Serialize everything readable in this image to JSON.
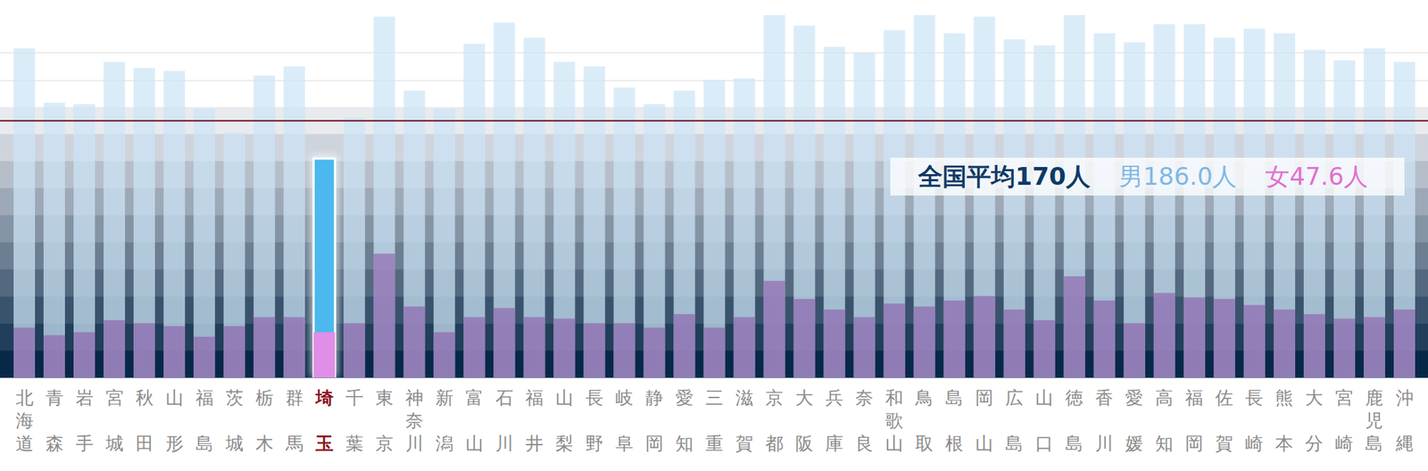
{
  "chart_data": {
    "type": "bar",
    "categories": [
      "北海道",
      "青森",
      "岩手",
      "宮城",
      "秋田",
      "山形",
      "福島",
      "茨城",
      "栃木",
      "群馬",
      "埼玉",
      "千葉",
      "東京",
      "神奈川",
      "新潟",
      "富山",
      "石川",
      "福井",
      "山梨",
      "長野",
      "岐阜",
      "静岡",
      "愛知",
      "三重",
      "滋賀",
      "京都",
      "大阪",
      "兵庫",
      "奈良",
      "和歌山",
      "鳥取",
      "島根",
      "岡山",
      "広島",
      "山口",
      "徳島",
      "香川",
      "愛媛",
      "高知",
      "福岡",
      "佐賀",
      "長崎",
      "熊本",
      "大分",
      "宮崎",
      "鹿児島",
      "沖縄"
    ],
    "series": [
      {
        "name": "男",
        "color": "#cde5f7",
        "colors": [
          "#cde5f7",
          "#cde5f7",
          "#cde5f7",
          "#cde5f7",
          "#cde5f7",
          "#cde5f7",
          "#cde5f7",
          "#cde5f7",
          "#cde5f7",
          "#cde5f7",
          "#4bb8ee",
          "#cde5f7",
          "#cde5f7",
          "#cde5f7",
          "#cde5f7",
          "#cde5f7",
          "#cde5f7",
          "#cde5f7",
          "#cde5f7",
          "#cde5f7",
          "#cde5f7",
          "#cde5f7",
          "#cde5f7",
          "#cde5f7",
          "#cde5f7",
          "#cde5f7",
          "#cde5f7",
          "#cde5f7",
          "#cde5f7",
          "#cde5f7",
          "#cde5f7",
          "#cde5f7",
          "#cde5f7",
          "#cde5f7",
          "#cde5f7",
          "#cde5f7",
          "#cde5f7",
          "#cde5f7",
          "#cde5f7",
          "#cde5f7",
          "#cde5f7",
          "#cde5f7",
          "#cde5f7",
          "#cde5f7",
          "#cde5f7",
          "#cde5f7",
          "#cde5f7"
        ],
        "values": [
          218,
          182,
          181,
          209,
          205,
          203,
          178,
          162,
          200,
          206,
          145,
          172,
          239,
          190,
          178,
          221,
          235,
          225,
          209,
          206,
          192,
          181,
          190,
          197,
          198,
          240,
          233,
          219,
          215,
          230,
          240,
          228,
          239,
          224,
          220,
          240,
          228,
          222,
          234,
          234,
          225,
          231,
          228,
          217,
          210,
          218,
          209
        ]
      },
      {
        "name": "女",
        "color": "#8c5aaa",
        "colors": [
          "#8c5aaa",
          "#8c5aaa",
          "#8c5aaa",
          "#8c5aaa",
          "#8c5aaa",
          "#8c5aaa",
          "#8c5aaa",
          "#8c5aaa",
          "#8c5aaa",
          "#8c5aaa",
          "#e08ee6",
          "#8c5aaa",
          "#8c5aaa",
          "#8c5aaa",
          "#8c5aaa",
          "#8c5aaa",
          "#8c5aaa",
          "#8c5aaa",
          "#8c5aaa",
          "#8c5aaa",
          "#8c5aaa",
          "#8c5aaa",
          "#8c5aaa",
          "#8c5aaa",
          "#8c5aaa",
          "#8c5aaa",
          "#8c5aaa",
          "#8c5aaa",
          "#8c5aaa",
          "#8c5aaa",
          "#8c5aaa",
          "#8c5aaa",
          "#8c5aaa",
          "#8c5aaa",
          "#8c5aaa",
          "#8c5aaa",
          "#8c5aaa",
          "#8c5aaa",
          "#8c5aaa",
          "#8c5aaa",
          "#8c5aaa",
          "#8c5aaa",
          "#8c5aaa",
          "#8c5aaa",
          "#8c5aaa",
          "#8c5aaa",
          "#8c5aaa"
        ],
        "values": [
          33,
          28,
          30,
          38,
          36,
          34,
          27,
          34,
          40,
          40,
          30,
          36,
          82,
          47,
          30,
          40,
          46,
          40,
          39,
          36,
          36,
          33,
          42,
          33,
          40,
          64,
          52,
          45,
          40,
          49,
          47,
          51,
          54,
          45,
          38,
          67,
          51,
          36,
          56,
          53,
          52,
          48,
          45,
          42,
          39,
          40,
          45
        ]
      }
    ],
    "ylim": [
      0,
      250
    ],
    "tick_labels": "x",
    "annotations": [
      {
        "text": "全国平均170人",
        "value": 170,
        "color": "#0d3a66"
      },
      {
        "text": "男186.0人",
        "value": 186.0,
        "color": "#7fb8e6"
      },
      {
        "text": "女47.6人",
        "value": 47.6,
        "color": "#e070d0"
      }
    ]
  }
}
